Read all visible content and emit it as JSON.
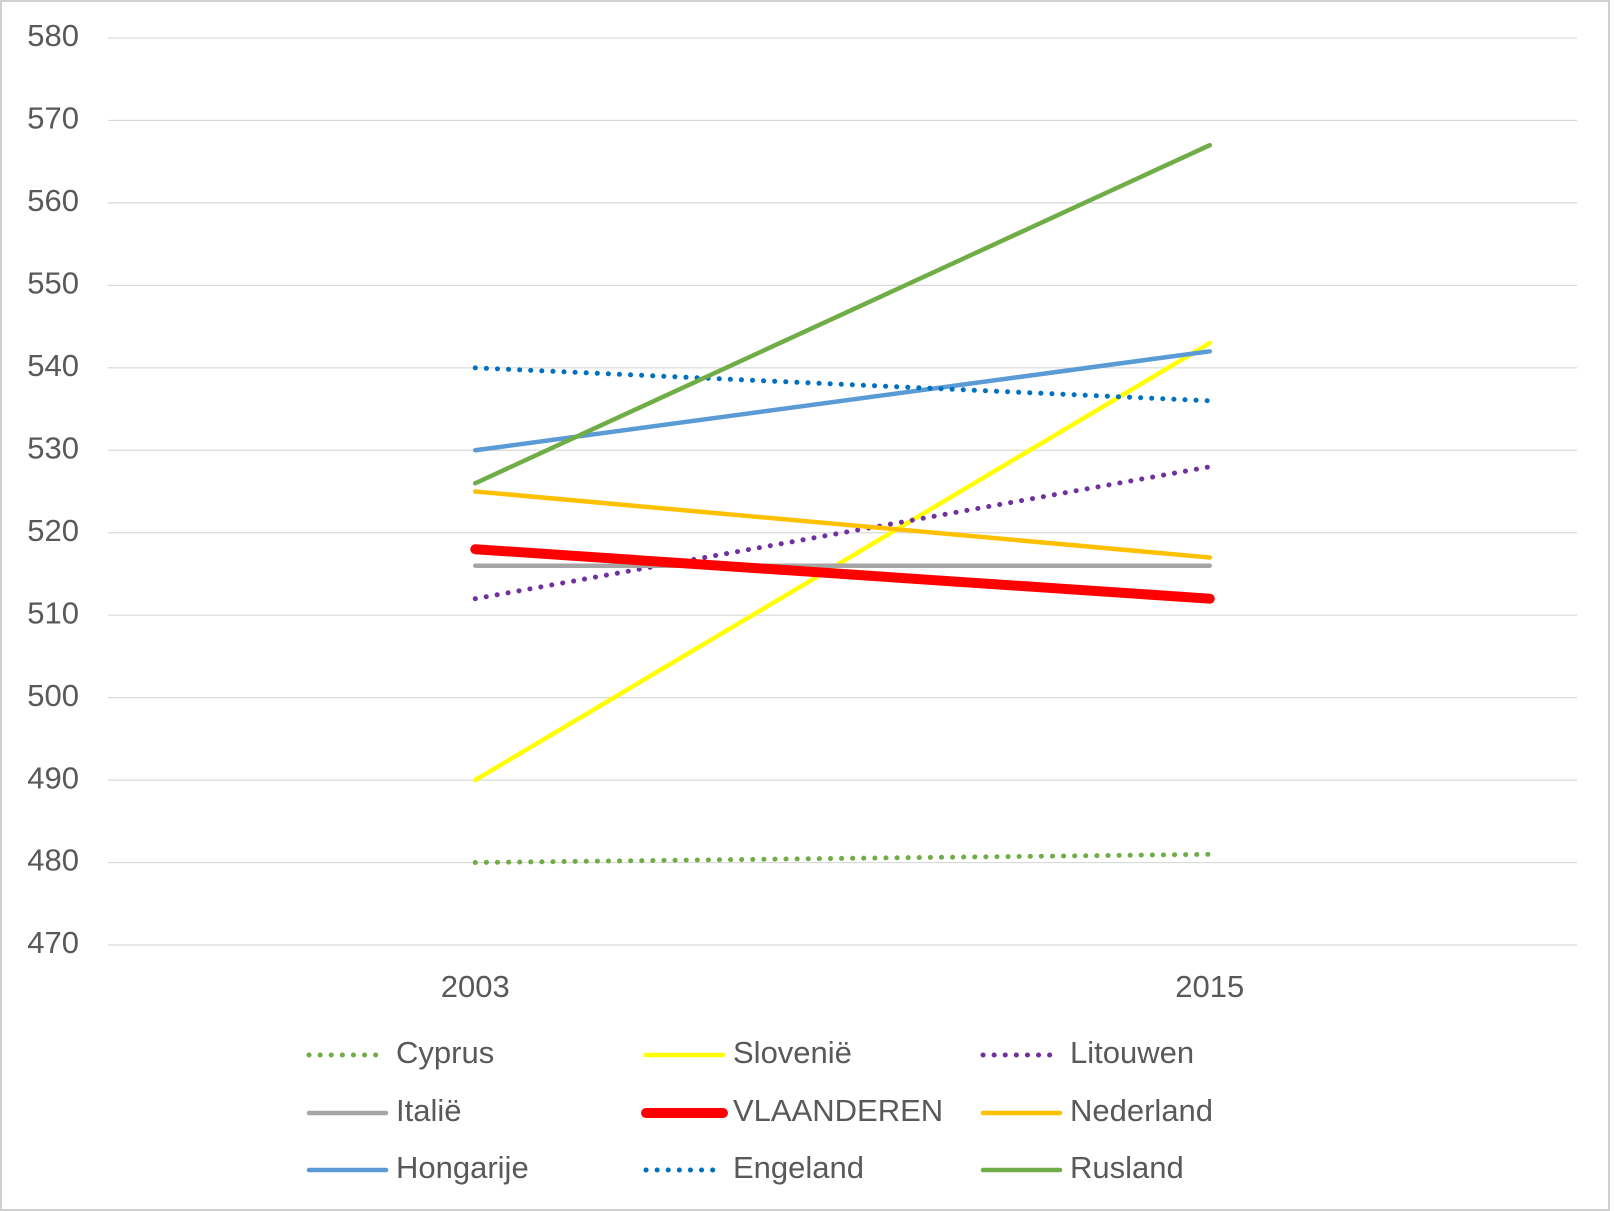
{
  "chart_data": {
    "type": "line",
    "categories": [
      "2003",
      "2015"
    ],
    "ylim": [
      470,
      580
    ],
    "yticks": [
      470,
      480,
      490,
      500,
      510,
      520,
      530,
      540,
      550,
      560,
      570,
      580
    ],
    "grid": true,
    "legend": "bottom",
    "series": [
      {
        "name": "Cyprus",
        "color": "#70ad47",
        "line_style": "dotted",
        "values": [
          480,
          481
        ]
      },
      {
        "name": "Slovenië",
        "color": "#ffff00",
        "line_style": "solid",
        "values": [
          490,
          543
        ]
      },
      {
        "name": "Litouwen",
        "color": "#7030a0",
        "line_style": "dotted",
        "values": [
          512,
          528
        ]
      },
      {
        "name": "Italië",
        "color": "#a5a5a5",
        "line_style": "solid",
        "values": [
          516,
          516
        ]
      },
      {
        "name": "VLAANDEREN",
        "color": "#ff0000",
        "line_style": "thick",
        "values": [
          518,
          512
        ]
      },
      {
        "name": "Nederland",
        "color": "#ffc000",
        "line_style": "solid",
        "values": [
          525,
          517
        ]
      },
      {
        "name": "Hongarije",
        "color": "#5b9bd5",
        "line_style": "solid",
        "values": [
          530,
          542
        ]
      },
      {
        "name": "Engeland",
        "color": "#0070c0",
        "line_style": "dotted",
        "values": [
          540,
          536
        ]
      },
      {
        "name": "Rusland",
        "color": "#70ad47",
        "line_style": "solid",
        "values": [
          526,
          567
        ]
      }
    ]
  }
}
